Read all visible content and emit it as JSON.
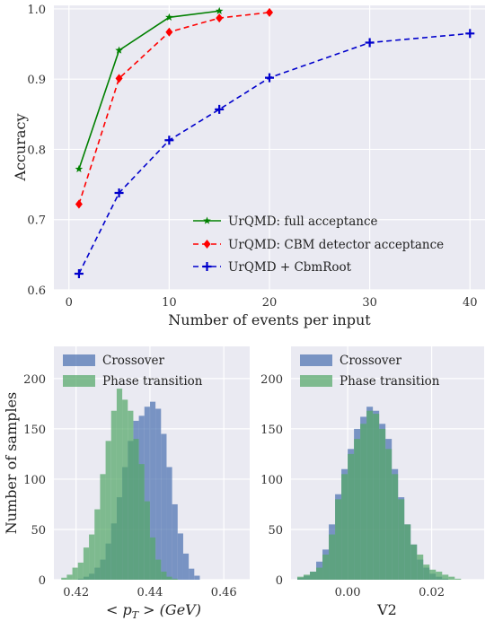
{
  "chart_data": [
    {
      "type": "line",
      "xlabel": "Number of events per input",
      "ylabel": "Accuracy",
      "xlim": [
        -1.5,
        41.5
      ],
      "ylim": [
        0.6,
        1.005
      ],
      "xticks": [
        0,
        10,
        20,
        30,
        40
      ],
      "yticks": [
        0.6,
        0.7,
        0.8,
        0.9,
        1.0
      ],
      "ytick_labels": [
        "0.6",
        "0.7",
        "0.8",
        "0.9",
        "1.0"
      ],
      "grid": true,
      "legend_position": "lower-right",
      "series": [
        {
          "name": "UrQMD: full acceptance",
          "color": "#008000",
          "linestyle": "solid",
          "marker": "star",
          "x": [
            1,
            5,
            10,
            15
          ],
          "y": [
            0.772,
            0.941,
            0.988,
            0.997
          ]
        },
        {
          "name": "UrQMD: CBM detector acceptance",
          "color": "#ff0000",
          "linestyle": "dashed",
          "marker": "diamond",
          "x": [
            1,
            5,
            10,
            15,
            20
          ],
          "y": [
            0.722,
            0.901,
            0.967,
            0.987,
            0.995
          ]
        },
        {
          "name": "UrQMD + CbmRoot",
          "color": "#0000cc",
          "linestyle": "dashed",
          "marker": "plus",
          "x": [
            1,
            5,
            10,
            15,
            20,
            30,
            40
          ],
          "y": [
            0.623,
            0.738,
            0.813,
            0.857,
            0.902,
            0.952,
            0.965
          ]
        }
      ]
    },
    {
      "type": "histogram",
      "xlabel": "< p_T > (GeV)",
      "ylabel": "Number of samples",
      "xlim": [
        0.414,
        0.467
      ],
      "ylim": [
        0,
        232
      ],
      "xticks": [
        0.42,
        0.44,
        0.46
      ],
      "xtick_labels": [
        "0.42",
        "0.44",
        "0.46"
      ],
      "yticks": [
        0,
        50,
        100,
        150,
        200
      ],
      "grid": true,
      "legend_position": "top-left",
      "bin_start": 0.416,
      "bin_width": 0.0015,
      "series": [
        {
          "name": "Crossover",
          "color": "#4c72b0",
          "counts": [
            0,
            0,
            0,
            1,
            3,
            6,
            12,
            20,
            36,
            56,
            82,
            112,
            138,
            158,
            163,
            172,
            177,
            170,
            145,
            112,
            75,
            46,
            26,
            11,
            4
          ]
        },
        {
          "name": "Phase transition",
          "color": "#55a868",
          "counts": [
            2,
            5,
            12,
            17,
            32,
            45,
            70,
            105,
            138,
            168,
            190,
            179,
            168,
            140,
            115,
            78,
            42,
            20,
            8,
            3,
            1,
            0,
            0,
            0,
            0
          ]
        }
      ]
    },
    {
      "type": "histogram",
      "xlabel": "V2",
      "ylabel": "",
      "xlim": [
        -0.0135,
        0.0325
      ],
      "ylim": [
        0,
        232
      ],
      "xticks": [
        0.0,
        0.02
      ],
      "xtick_labels": [
        "0.00",
        "0.02"
      ],
      "yticks": [
        0,
        50,
        100,
        150,
        200
      ],
      "grid": true,
      "legend_position": "top-left",
      "bin_start": -0.012,
      "bin_width": 0.0015,
      "series": [
        {
          "name": "Crossover",
          "color": "#4c72b0",
          "counts": [
            2,
            4,
            8,
            18,
            30,
            55,
            85,
            110,
            130,
            150,
            162,
            172,
            168,
            155,
            140,
            110,
            82,
            55,
            35,
            20,
            12,
            6,
            3,
            1,
            0,
            0,
            0,
            0,
            0,
            0
          ]
        },
        {
          "name": "Phase transition",
          "color": "#55a868",
          "counts": [
            3,
            5,
            8,
            12,
            25,
            45,
            80,
            105,
            125,
            140,
            155,
            168,
            165,
            150,
            130,
            105,
            80,
            55,
            35,
            25,
            15,
            10,
            8,
            5,
            3,
            1,
            0,
            0,
            0,
            0
          ]
        }
      ]
    }
  ]
}
